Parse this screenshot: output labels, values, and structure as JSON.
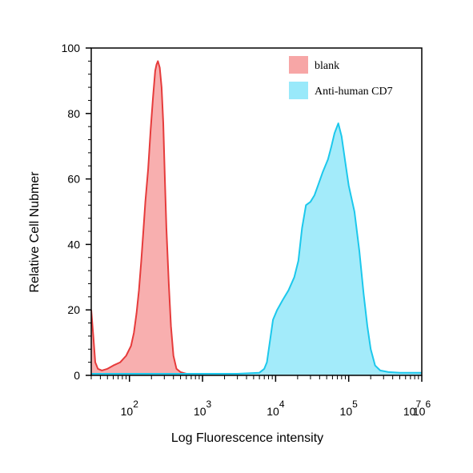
{
  "chart_data": {
    "type": "area",
    "xlabel": "Log Fluorescence intensity",
    "ylabel": "Relative Cell Nubmer",
    "x_scale": "log",
    "xlim": [
      30,
      1000000
    ],
    "ylim": [
      0,
      100
    ],
    "y_ticks": [
      0,
      20,
      40,
      60,
      80,
      100
    ],
    "x_ticks": [
      {
        "base": "10",
        "exp": "2",
        "value": 100
      },
      {
        "base": "10",
        "exp": "3",
        "value": 1000
      },
      {
        "base": "10",
        "exp": "4",
        "value": 10000
      },
      {
        "base": "10",
        "exp": "5",
        "value": 100000
      },
      {
        "base": "10",
        "exp": "6",
        "value": 1000000
      },
      {
        "base": "10",
        "exp": "7",
        "value": 10000000
      }
    ],
    "legend_position": "top-right",
    "grid": false,
    "series": [
      {
        "name": "blank",
        "fill": "#f7a6a6",
        "stroke": "#e63b3b",
        "points": [
          [
            30,
            20
          ],
          [
            32,
            12
          ],
          [
            34,
            4
          ],
          [
            37,
            2
          ],
          [
            42,
            1.5
          ],
          [
            50,
            2
          ],
          [
            60,
            3
          ],
          [
            75,
            4
          ],
          [
            90,
            6
          ],
          [
            105,
            9
          ],
          [
            115,
            13
          ],
          [
            125,
            19
          ],
          [
            135,
            26
          ],
          [
            145,
            35
          ],
          [
            155,
            44
          ],
          [
            165,
            53
          ],
          [
            180,
            63
          ],
          [
            195,
            75
          ],
          [
            210,
            85
          ],
          [
            225,
            93
          ],
          [
            235,
            95
          ],
          [
            245,
            96
          ],
          [
            260,
            94
          ],
          [
            275,
            88
          ],
          [
            290,
            77
          ],
          [
            305,
            60
          ],
          [
            320,
            45
          ],
          [
            345,
            28
          ],
          [
            370,
            15
          ],
          [
            400,
            6
          ],
          [
            440,
            2
          ],
          [
            500,
            1
          ],
          [
            600,
            0.5
          ],
          [
            800,
            0.3
          ],
          [
            1000,
            0.2
          ],
          [
            3000,
            0.1
          ],
          [
            1000000,
            0.1
          ]
        ]
      },
      {
        "name": "Anti-human CD7",
        "fill": "#99e9fa",
        "stroke": "#1cc8ec",
        "points": [
          [
            30,
            0.5
          ],
          [
            3000,
            0.5
          ],
          [
            6000,
            0.8
          ],
          [
            7000,
            2
          ],
          [
            7600,
            4
          ],
          [
            8300,
            10
          ],
          [
            9200,
            17
          ],
          [
            10500,
            20
          ],
          [
            12500,
            23
          ],
          [
            15000,
            26
          ],
          [
            18000,
            30
          ],
          [
            20500,
            35
          ],
          [
            23000,
            45
          ],
          [
            26000,
            52
          ],
          [
            30000,
            53
          ],
          [
            34000,
            55
          ],
          [
            38000,
            58
          ],
          [
            44000,
            62
          ],
          [
            52000,
            66
          ],
          [
            58000,
            70
          ],
          [
            64000,
            74
          ],
          [
            72000,
            77
          ],
          [
            80000,
            73
          ],
          [
            90000,
            65
          ],
          [
            100000,
            58
          ],
          [
            120000,
            50
          ],
          [
            140000,
            38
          ],
          [
            160000,
            25
          ],
          [
            180000,
            15
          ],
          [
            200000,
            8
          ],
          [
            230000,
            3
          ],
          [
            270000,
            1.5
          ],
          [
            350000,
            1
          ],
          [
            500000,
            0.8
          ],
          [
            1000000,
            0.8
          ]
        ]
      }
    ]
  }
}
